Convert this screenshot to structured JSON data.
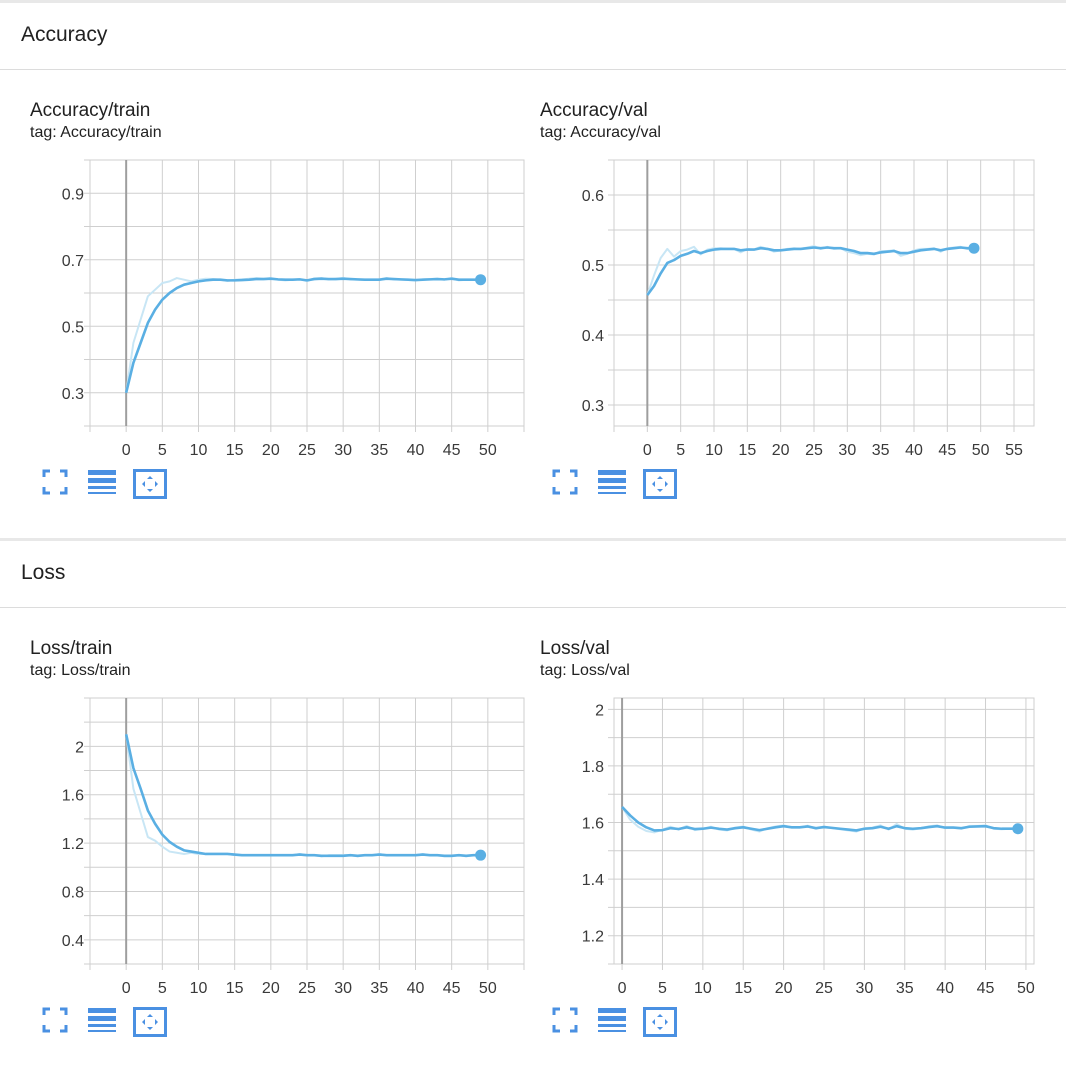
{
  "colors": {
    "accent": "#5aafe3",
    "accent_light": "#c8e6f5",
    "button": "#4a90e2",
    "grid": "#cfcfcf",
    "zero_line": "#9e9e9e"
  },
  "icons": {
    "fit": "fit-to-domain-icon",
    "log": "toggle-log-scale-icon",
    "expand": "expand-chart-icon"
  },
  "sections": [
    {
      "title": "Accuracy"
    },
    {
      "title": "Loss"
    }
  ],
  "chart_data": [
    {
      "type": "line",
      "title": "Accuracy/train",
      "tag": "tag: Accuracy/train",
      "xlim": [
        -5,
        55
      ],
      "ylim": [
        0.2,
        1.0
      ],
      "x_ticks": [
        0,
        5,
        10,
        15,
        20,
        25,
        30,
        35,
        40,
        45,
        50
      ],
      "y_ticks": [
        0.3,
        0.5,
        0.7,
        0.9
      ],
      "y_ticks_labels": [
        "0.3",
        "0.5",
        "0.7",
        "0.9"
      ],
      "series": [
        {
          "x": [
            0,
            1,
            2,
            3,
            4,
            5,
            6,
            7,
            8,
            9,
            10,
            11,
            12,
            13,
            14,
            15,
            16,
            17,
            18,
            19,
            20,
            21,
            22,
            23,
            24,
            25,
            26,
            27,
            28,
            29,
            30,
            31,
            32,
            33,
            34,
            35,
            36,
            37,
            38,
            39,
            40,
            41,
            42,
            43,
            44,
            45,
            46,
            47,
            48,
            49
          ],
          "smoothed": [
            0.3,
            0.39,
            0.45,
            0.51,
            0.55,
            0.58,
            0.6,
            0.615,
            0.625,
            0.63,
            0.635,
            0.638,
            0.64,
            0.64,
            0.638,
            0.638,
            0.639,
            0.64,
            0.642,
            0.642,
            0.643,
            0.641,
            0.64,
            0.64,
            0.641,
            0.638,
            0.642,
            0.643,
            0.642,
            0.642,
            0.643,
            0.642,
            0.641,
            0.64,
            0.64,
            0.64,
            0.643,
            0.642,
            0.641,
            0.64,
            0.639,
            0.64,
            0.641,
            0.642,
            0.641,
            0.643,
            0.64,
            0.64,
            0.64,
            0.64
          ],
          "raw": [
            0.3,
            0.45,
            0.52,
            0.59,
            0.61,
            0.63,
            0.635,
            0.645,
            0.64,
            0.635,
            0.64,
            0.643,
            0.642,
            0.64,
            0.636,
            0.64,
            0.641,
            0.643,
            0.645,
            0.643,
            0.645,
            0.64,
            0.638,
            0.64,
            0.642,
            0.636,
            0.644,
            0.645,
            0.641,
            0.643,
            0.645,
            0.641,
            0.64,
            0.639,
            0.64,
            0.641,
            0.645,
            0.641,
            0.64,
            0.639,
            0.638,
            0.641,
            0.642,
            0.643,
            0.64,
            0.645,
            0.638,
            0.64,
            0.64,
            0.64
          ]
        }
      ]
    },
    {
      "type": "line",
      "title": "Accuracy/val",
      "tag": "tag: Accuracy/val",
      "xlim": [
        -5,
        58
      ],
      "ylim": [
        0.27,
        0.65
      ],
      "x_ticks": [
        0,
        5,
        10,
        15,
        20,
        25,
        30,
        35,
        40,
        45,
        50,
        55
      ],
      "y_ticks": [
        0.3,
        0.4,
        0.5,
        0.6
      ],
      "y_ticks_labels": [
        "0.3",
        "0.4",
        "0.5",
        "0.6"
      ],
      "series": [
        {
          "x": [
            0,
            1,
            2,
            3,
            4,
            5,
            6,
            7,
            8,
            9,
            10,
            11,
            12,
            13,
            14,
            15,
            16,
            17,
            18,
            19,
            20,
            21,
            22,
            23,
            24,
            25,
            26,
            27,
            28,
            29,
            30,
            31,
            32,
            33,
            34,
            35,
            36,
            37,
            38,
            39,
            40,
            41,
            42,
            43,
            44,
            45,
            46,
            47,
            48,
            49
          ],
          "smoothed": [
            0.457,
            0.47,
            0.488,
            0.503,
            0.507,
            0.513,
            0.516,
            0.52,
            0.517,
            0.52,
            0.522,
            0.523,
            0.523,
            0.523,
            0.521,
            0.522,
            0.522,
            0.524,
            0.523,
            0.521,
            0.521,
            0.522,
            0.523,
            0.523,
            0.524,
            0.525,
            0.524,
            0.525,
            0.524,
            0.524,
            0.522,
            0.52,
            0.517,
            0.517,
            0.516,
            0.518,
            0.519,
            0.52,
            0.517,
            0.517,
            0.519,
            0.521,
            0.522,
            0.523,
            0.521,
            0.523,
            0.524,
            0.525,
            0.524,
            0.524
          ],
          "raw": [
            0.457,
            0.485,
            0.51,
            0.523,
            0.512,
            0.52,
            0.522,
            0.526,
            0.515,
            0.522,
            0.524,
            0.524,
            0.523,
            0.523,
            0.518,
            0.523,
            0.522,
            0.526,
            0.523,
            0.519,
            0.521,
            0.523,
            0.524,
            0.523,
            0.525,
            0.527,
            0.523,
            0.526,
            0.523,
            0.524,
            0.519,
            0.517,
            0.514,
            0.516,
            0.515,
            0.52,
            0.52,
            0.521,
            0.513,
            0.516,
            0.521,
            0.523,
            0.523,
            0.524,
            0.519,
            0.524,
            0.525,
            0.526,
            0.523,
            0.524
          ]
        }
      ]
    },
    {
      "type": "line",
      "title": "Loss/train",
      "tag": "tag: Loss/train",
      "xlim": [
        -5,
        55
      ],
      "ylim": [
        0.2,
        2.4
      ],
      "x_ticks": [
        0,
        5,
        10,
        15,
        20,
        25,
        30,
        35,
        40,
        45,
        50
      ],
      "y_ticks": [
        0.4,
        0.8,
        1.2,
        1.6,
        2.0
      ],
      "y_ticks_labels": [
        "0.4",
        "0.8",
        "1.2",
        "1.6",
        "2"
      ],
      "series": [
        {
          "x": [
            0,
            1,
            2,
            3,
            4,
            5,
            6,
            7,
            8,
            9,
            10,
            11,
            12,
            13,
            14,
            15,
            16,
            17,
            18,
            19,
            20,
            21,
            22,
            23,
            24,
            25,
            26,
            27,
            28,
            29,
            30,
            31,
            32,
            33,
            34,
            35,
            36,
            37,
            38,
            39,
            40,
            41,
            42,
            43,
            44,
            45,
            46,
            47,
            48,
            49
          ],
          "smoothed": [
            2.1,
            1.82,
            1.65,
            1.47,
            1.36,
            1.27,
            1.21,
            1.17,
            1.14,
            1.13,
            1.12,
            1.11,
            1.11,
            1.11,
            1.11,
            1.105,
            1.1,
            1.1,
            1.1,
            1.1,
            1.1,
            1.1,
            1.1,
            1.1,
            1.105,
            1.1,
            1.1,
            1.095,
            1.095,
            1.095,
            1.095,
            1.1,
            1.095,
            1.1,
            1.1,
            1.105,
            1.1,
            1.1,
            1.1,
            1.1,
            1.1,
            1.105,
            1.1,
            1.1,
            1.095,
            1.095,
            1.1,
            1.095,
            1.1,
            1.1
          ],
          "raw": [
            2.1,
            1.65,
            1.45,
            1.25,
            1.22,
            1.17,
            1.13,
            1.12,
            1.11,
            1.12,
            1.11,
            1.11,
            1.11,
            1.11,
            1.11,
            1.1,
            1.1,
            1.1,
            1.1,
            1.1,
            1.1,
            1.1,
            1.1,
            1.1,
            1.11,
            1.1,
            1.1,
            1.09,
            1.1,
            1.1,
            1.1,
            1.1,
            1.09,
            1.1,
            1.1,
            1.11,
            1.1,
            1.1,
            1.1,
            1.1,
            1.1,
            1.11,
            1.1,
            1.1,
            1.09,
            1.09,
            1.1,
            1.09,
            1.1,
            1.1
          ]
        }
      ]
    },
    {
      "type": "line",
      "title": "Loss/val",
      "tag": "tag: Loss/val",
      "xlim": [
        -1,
        51
      ],
      "ylim": [
        1.1,
        2.04
      ],
      "x_ticks": [
        0,
        5,
        10,
        15,
        20,
        25,
        30,
        35,
        40,
        45,
        50
      ],
      "y_ticks": [
        1.2,
        1.4,
        1.6,
        1.8,
        2.0
      ],
      "y_ticks_labels": [
        "1.2",
        "1.4",
        "1.6",
        "1.8",
        "2"
      ],
      "series": [
        {
          "x": [
            0,
            1,
            2,
            3,
            4,
            5,
            6,
            7,
            8,
            9,
            10,
            11,
            12,
            13,
            14,
            15,
            16,
            17,
            18,
            19,
            20,
            21,
            22,
            23,
            24,
            25,
            26,
            27,
            28,
            29,
            30,
            31,
            32,
            33,
            34,
            35,
            36,
            37,
            38,
            39,
            40,
            41,
            42,
            43,
            44,
            45,
            46,
            47,
            48,
            49
          ],
          "smoothed": [
            1.655,
            1.625,
            1.6,
            1.583,
            1.572,
            1.573,
            1.58,
            1.577,
            1.583,
            1.577,
            1.578,
            1.582,
            1.578,
            1.575,
            1.58,
            1.583,
            1.578,
            1.573,
            1.578,
            1.583,
            1.587,
            1.583,
            1.583,
            1.586,
            1.58,
            1.584,
            1.581,
            1.578,
            1.575,
            1.572,
            1.578,
            1.58,
            1.585,
            1.578,
            1.587,
            1.58,
            1.578,
            1.58,
            1.584,
            1.587,
            1.582,
            1.582,
            1.58,
            1.585,
            1.586,
            1.587,
            1.58,
            1.578,
            1.578,
            1.578
          ],
          "raw": [
            1.655,
            1.61,
            1.585,
            1.57,
            1.565,
            1.575,
            1.585,
            1.575,
            1.588,
            1.573,
            1.578,
            1.585,
            1.575,
            1.572,
            1.582,
            1.586,
            1.575,
            1.568,
            1.58,
            1.586,
            1.59,
            1.582,
            1.582,
            1.589,
            1.578,
            1.586,
            1.58,
            1.576,
            1.572,
            1.568,
            1.58,
            1.582,
            1.59,
            1.575,
            1.595,
            1.578,
            1.575,
            1.58,
            1.587,
            1.59,
            1.58,
            1.582,
            1.578,
            1.588,
            1.588,
            1.59,
            1.578,
            1.576,
            1.578,
            1.578
          ]
        }
      ]
    }
  ]
}
